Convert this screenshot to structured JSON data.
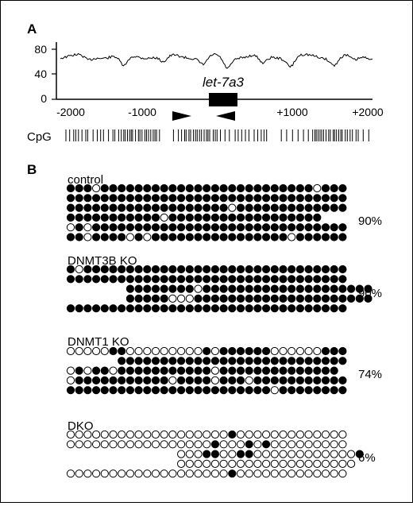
{
  "panel_a": {
    "letter": "A",
    "gene_label": "let-7a3",
    "y_ticks": [
      "80",
      "40",
      "0"
    ],
    "x_ticks": [
      "-2000",
      "-1000",
      "+1000",
      "+2000"
    ],
    "cpg_label": "CpG"
  },
  "panel_b": {
    "letter": "B",
    "groups": [
      {
        "name": "control",
        "percent": "90%",
        "rows": [
          "MMMUMMMMMMMMMMMMMMMMMMMMMMMMMUMMM",
          "MMMMMMMMMMMMMMMMMMMMMMMMMMMMMMMMM",
          "MMMMMMMMMMMMMMMMMMMUMMMMMMMMMMMMM",
          "MMMMMMMMMMMUMMMMMMMMMMMMMMMMMM",
          "UMUMMMMMMMMMMMMMMMMMMMMMMMMMMMMMM",
          "MMUMMMMUMUMMMMMMMMMMMMMMMMUMMMMMM"
        ]
      },
      {
        "name": "DNMT3B KO",
        "percent": "90%",
        "rows": [
          "MUMMMMMMMMMMMMMMMMMMMMMMMMMMMMMMM",
          "MMMMMMMMMMMMMMMMMMMMMMMMMMMMMMMMM",
          "       MMMMMMMMUMMMMMMMMMMMMMMMMMMMM",
          "       MMMMMUUUMMMMMMMMMMMMMMMMMMMMM",
          "MMMMMMMMMMMMMMMMMMMMMMMMMMMMMMMMM"
        ]
      },
      {
        "name": "DNMT1 KO",
        "percent": "74%",
        "rows": [
          "UUUUUMMUUUUUUUUUMUMMMMMMUUUUUUMMM",
          "      MMMMMMMMMMMMMMMMMMMMMMMMMMM",
          "UMUMMUMMMMMMMMMMMUMMMMMMMMMMMMMM",
          "UMMMMMMMMMMMUMMMMUMMMUMMMMMMMMMMM",
          "MMMMMMMMMMMMMMMMMMMMMMMMUMMMMMMMM"
        ]
      },
      {
        "name": "DKO",
        "percent": "6%",
        "rows": [
          "UUUUUUUUUUUUUUUUUUUMUUUUUUUUUUUUU",
          "UUUUUUUUUUUUUUUUUMUUUMUMUUUUUUUUU",
          "             UUUMMUUMMUUUUUUUUUUUUM",
          "             UUUUUUUUUUUUUUUUUUUUU",
          "UUUUUUUUUUUUUUUUUUUMUUUUUUUUUUUUU"
        ]
      }
    ]
  }
}
